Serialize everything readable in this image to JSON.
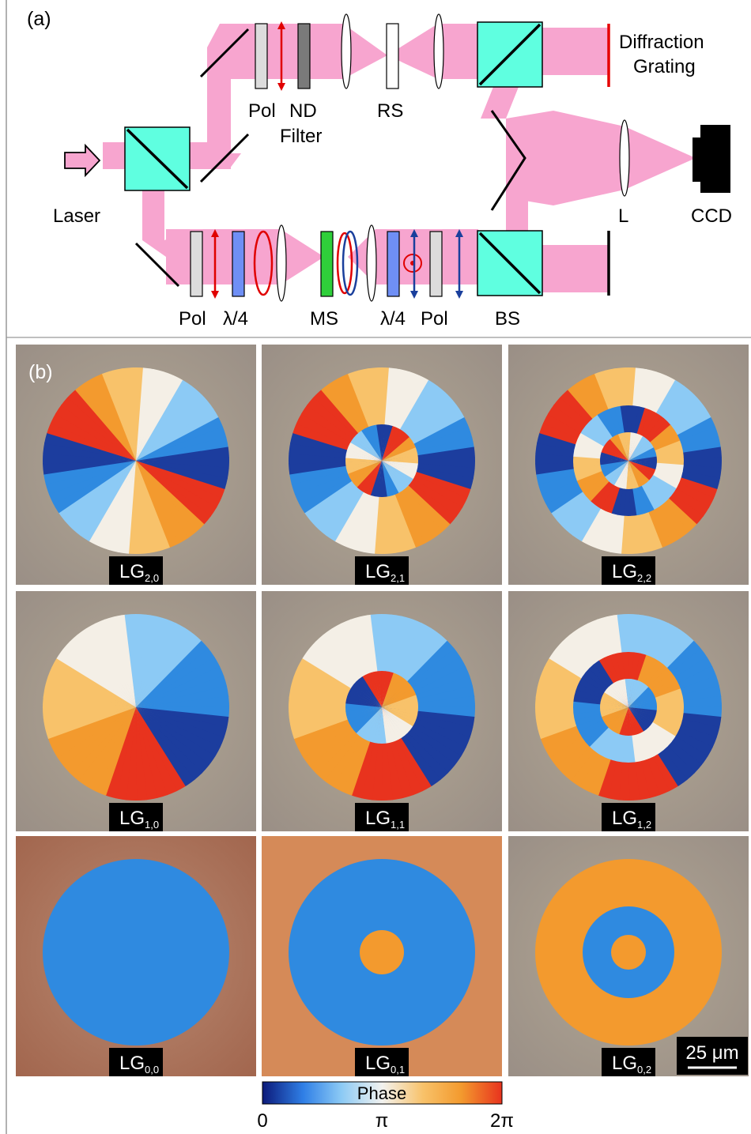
{
  "panel_a": {
    "label": "(a)",
    "labels": {
      "laser": "Laser",
      "pol_top": "Pol",
      "nd": "ND",
      "filter": "Filter",
      "rs": "RS",
      "diffraction": "Diffraction",
      "grating": "Grating",
      "lens_l": "L",
      "ccd": "CCD",
      "pol_b1": "Pol",
      "qwp_b1": "λ/4",
      "ms": "MS",
      "qwp_b2": "λ/4",
      "pol_b2": "Pol",
      "bs": "BS"
    },
    "colors": {
      "beam": "#f7a5cf",
      "beamsplitter": "#5fffe0",
      "polarizer": "#dcdcdc",
      "nd_filter": "#7a7a7a",
      "waveplate": "#6f8ff5",
      "ms": "#2fcf3a",
      "grating": "#e60000",
      "pol_arrow_red": "#e00000",
      "pol_arrow_blue": "#1a3f9c"
    }
  },
  "panel_b": {
    "label": "(b)",
    "grid": [
      [
        {
          "p": "2",
          "l": "0"
        },
        {
          "p": "2",
          "l": "1"
        },
        {
          "p": "2",
          "l": "2"
        }
      ],
      [
        {
          "p": "1",
          "l": "0"
        },
        {
          "p": "1",
          "l": "1"
        },
        {
          "p": "1",
          "l": "2"
        }
      ],
      [
        {
          "p": "0",
          "l": "0"
        },
        {
          "p": "0",
          "l": "1"
        },
        {
          "p": "0",
          "l": "2"
        }
      ]
    ],
    "mode_prefix": "LG",
    "scale_bar": "25 μm",
    "colorbar": {
      "title": "Phase",
      "ticks": [
        "0",
        "π",
        "2π"
      ],
      "colors": [
        "#0c1a7a",
        "#2f7fe6",
        "#8ccaf5",
        "#f2f2ef",
        "#f8c26a",
        "#f39a2e",
        "#e8331e"
      ]
    }
  }
}
